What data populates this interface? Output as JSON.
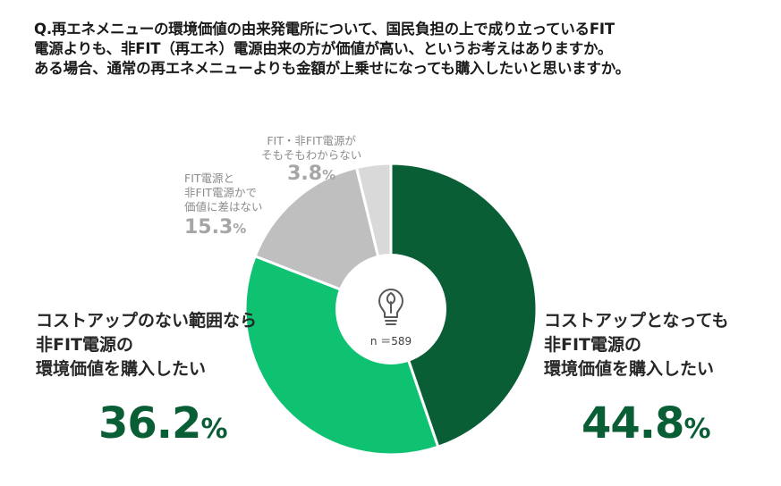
{
  "question": {
    "line1": "Q.再エネメニューの環境価値の由来発電所について、国民負担の上で成り立っているFIT",
    "line2": "電源よりも、非FIT（再エネ）電源由来の方が価値が高い、というお考えはありますか。",
    "line3": "ある場合、通常の再エネメニューよりも金額が上乗せになっても購入したいと思いますか。"
  },
  "center": {
    "n_label": "n ＝589",
    "icon": "lightbulb-leaf-icon"
  },
  "labels": {
    "seg1": {
      "line1": "コストアップとなっても",
      "line2": "非FIT電源の",
      "line3": "環境価値を購入したい",
      "pct": "44.8",
      "unit": "%"
    },
    "seg2": {
      "line1": "コストアップのない範囲なら",
      "line2": "非FIT電源の",
      "line3": "環境価値を購入したい",
      "pct": "36.2",
      "unit": "%"
    },
    "seg3": {
      "line1": "FIT電源と",
      "line2": "非FIT電源かで",
      "line3": "価値に差はない",
      "pct": "15.3",
      "unit": "%"
    },
    "seg4": {
      "line1": "FIT・非FIT電源が",
      "line2": "そもそもわからない",
      "pct": "3.8",
      "unit": "%"
    }
  },
  "chart_data": {
    "type": "pie",
    "donut": true,
    "n": 589,
    "categories": [
      "コストアップとなっても非FIT電源の環境価値を購入したい",
      "コストアップのない範囲なら非FIT電源の環境価値を購入したい",
      "FIT電源と非FIT電源かで価値に差はない",
      "FIT・非FIT電源がそもそもわからない"
    ],
    "values": [
      44.8,
      36.2,
      15.3,
      3.8
    ],
    "colors": [
      "#0a5e35",
      "#0ec272",
      "#bfbfbf",
      "#d9d9d9"
    ],
    "start": "12 o'clock",
    "direction": "clockwise"
  },
  "colors": {
    "dark_green": "#0a5e35",
    "green": "#0ec272",
    "gray": "#bfbfbf",
    "light_gray": "#d9d9d9"
  }
}
